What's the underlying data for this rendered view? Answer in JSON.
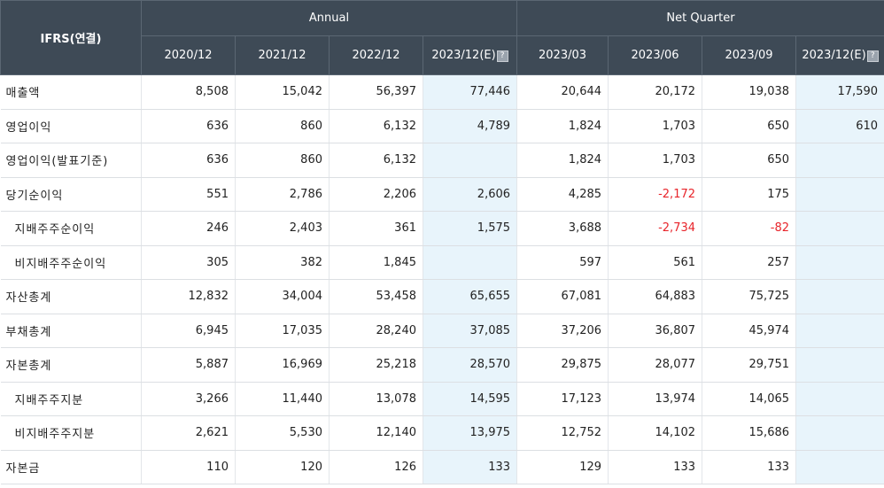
{
  "header": {
    "corner": "IFRS(연결)",
    "group_annual": "Annual",
    "group_quarter": "Net Quarter",
    "columns": [
      "2020/12",
      "2021/12",
      "2022/12",
      "2023/12(E)",
      "2023/03",
      "2023/06",
      "2023/09",
      "2023/12(E)"
    ],
    "estimate_icon": "help-icon"
  },
  "colors": {
    "header_bg": "#3e4a56",
    "estimate_bg": "#e8f4fb",
    "negative": "#e8242a"
  },
  "rows": [
    {
      "label": "매출액",
      "indent": false,
      "values": [
        "8,508",
        "15,042",
        "56,397",
        "77,446",
        "20,644",
        "20,172",
        "19,038",
        "17,590"
      ]
    },
    {
      "label": "영업이익",
      "indent": false,
      "values": [
        "636",
        "860",
        "6,132",
        "4,789",
        "1,824",
        "1,703",
        "650",
        "610"
      ]
    },
    {
      "label": "영업이익(발표기준)",
      "indent": false,
      "values": [
        "636",
        "860",
        "6,132",
        "",
        "1,824",
        "1,703",
        "650",
        ""
      ]
    },
    {
      "label": "당기순이익",
      "indent": false,
      "values": [
        "551",
        "2,786",
        "2,206",
        "2,606",
        "4,285",
        "-2,172",
        "175",
        ""
      ]
    },
    {
      "label": "지배주주순이익",
      "indent": true,
      "values": [
        "246",
        "2,403",
        "361",
        "1,575",
        "3,688",
        "-2,734",
        "-82",
        ""
      ]
    },
    {
      "label": "비지배주주순이익",
      "indent": true,
      "values": [
        "305",
        "382",
        "1,845",
        "",
        "597",
        "561",
        "257",
        ""
      ]
    },
    {
      "label": "자산총계",
      "indent": false,
      "values": [
        "12,832",
        "34,004",
        "53,458",
        "65,655",
        "67,081",
        "64,883",
        "75,725",
        ""
      ]
    },
    {
      "label": "부채총계",
      "indent": false,
      "values": [
        "6,945",
        "17,035",
        "28,240",
        "37,085",
        "37,206",
        "36,807",
        "45,974",
        ""
      ]
    },
    {
      "label": "자본총계",
      "indent": false,
      "values": [
        "5,887",
        "16,969",
        "25,218",
        "28,570",
        "29,875",
        "28,077",
        "29,751",
        ""
      ]
    },
    {
      "label": "지배주주지분",
      "indent": true,
      "values": [
        "3,266",
        "11,440",
        "13,078",
        "14,595",
        "17,123",
        "13,974",
        "14,065",
        ""
      ]
    },
    {
      "label": "비지배주주지분",
      "indent": true,
      "values": [
        "2,621",
        "5,530",
        "12,140",
        "13,975",
        "12,752",
        "14,102",
        "15,686",
        ""
      ]
    },
    {
      "label": "자본금",
      "indent": false,
      "values": [
        "110",
        "120",
        "126",
        "133",
        "129",
        "133",
        "133",
        ""
      ]
    }
  ]
}
